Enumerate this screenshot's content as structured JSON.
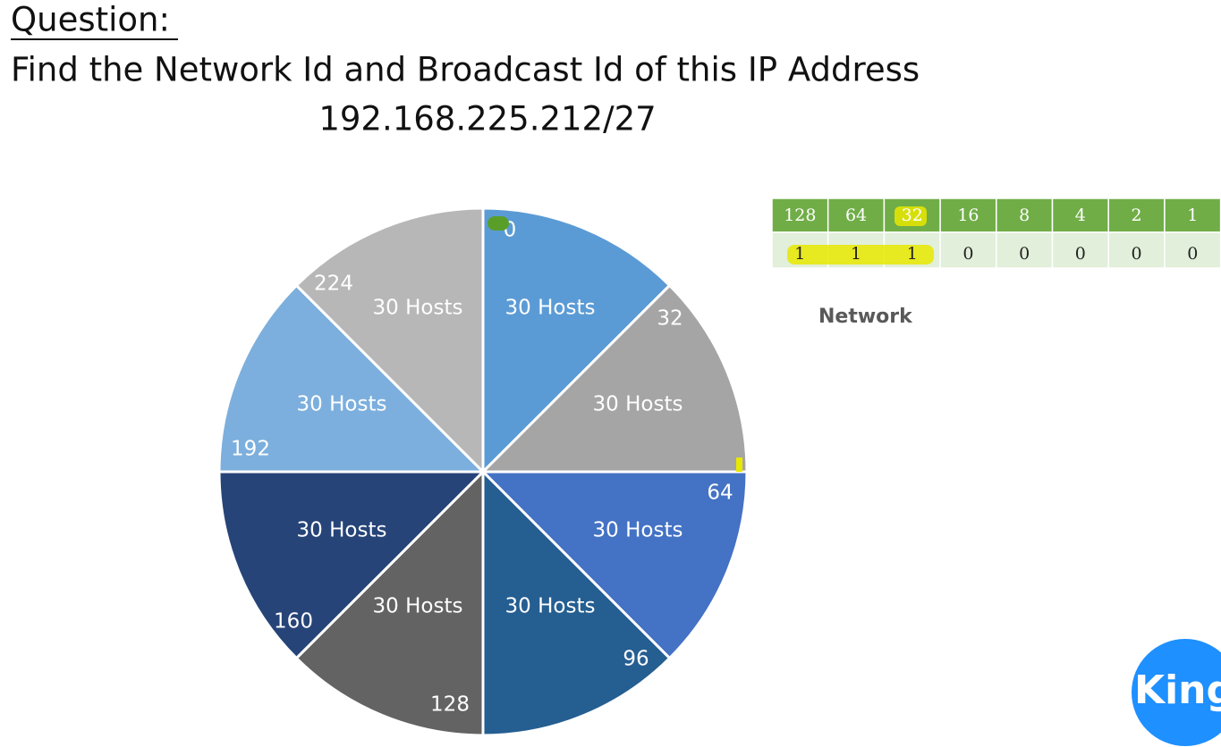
{
  "question": {
    "heading": "Question:",
    "text": "Find the Network Id and Broadcast Id of this IP Address",
    "ip": "192.168.225.212/27"
  },
  "wheel": {
    "slices": [
      {
        "start": "0",
        "hosts": "30 Hosts",
        "color": "#5b9bd5"
      },
      {
        "start": "32",
        "hosts": "30 Hosts",
        "color": "#a5a5a5"
      },
      {
        "start": "64",
        "hosts": "30 Hosts",
        "color": "#4472c4"
      },
      {
        "start": "96",
        "hosts": "30 Hosts",
        "color": "#255e91"
      },
      {
        "start": "128",
        "hosts": "30 Hosts",
        "color": "#636363"
      },
      {
        "start": "160",
        "hosts": "30 Hosts",
        "color": "#264478"
      },
      {
        "start": "192",
        "hosts": "30 Hosts",
        "color": "#7cafdd"
      },
      {
        "start": "224",
        "hosts": "30 Hosts",
        "color": "#b7b7b7"
      }
    ]
  },
  "bit_table": {
    "header": [
      "128",
      "64",
      "32",
      "16",
      "8",
      "4",
      "2",
      "1"
    ],
    "row": [
      "1",
      "1",
      "1",
      "0",
      "0",
      "0",
      "0",
      "0"
    ]
  },
  "network_label": "Network",
  "logo": "King"
}
